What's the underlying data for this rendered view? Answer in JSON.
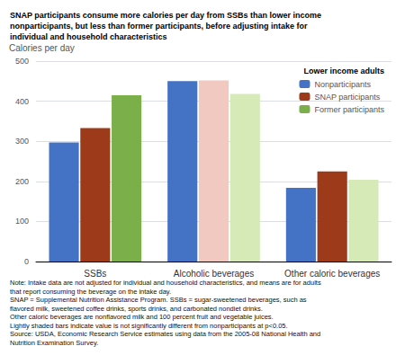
{
  "chart_data": {
    "type": "bar",
    "title": "SNAP participants consume more calories per day from SSBs than lower income\nnonparticipants, but less than former participants, before adjusting intake for\nindividual and household characteristics",
    "ylabel": "Calories per day",
    "categories": [
      "SSBs",
      "Alcoholic beverages",
      "Other caloric beverages"
    ],
    "series": [
      {
        "name": "Nonparticipants",
        "color": "#4472c4",
        "colors": [
          "#4472c4",
          "#4472c4",
          "#4472c4"
        ],
        "values": [
          297,
          450,
          184
        ]
      },
      {
        "name": "SNAP participants",
        "color": "#9c3a1a",
        "colors": [
          "#9c3a1a",
          "#f2c9c0",
          "#9c3a1a"
        ],
        "values": [
          333,
          452,
          225
        ]
      },
      {
        "name": "Former participants",
        "color": "#7aaf4a",
        "colors": [
          "#7aaf4a",
          "#d6eab8",
          "#d6eab8"
        ],
        "values": [
          415,
          418,
          204
        ]
      }
    ],
    "ylim": [
      0,
      500
    ],
    "yticks": [
      0,
      100,
      200,
      300,
      400,
      500
    ],
    "grid": true,
    "legend": "upper right",
    "legend_title": "Lower income adults",
    "notes": [
      "Note: Intake data are not adjusted for individual and household characteristics, and means are for adults",
      "that report consuming the beverage on the intake day.",
      "SNAP = Supplemental Nutrition Assistance Program. SSBs = sugar-sweetened beverages, such as",
      "flavored milk, sweetened coffee drinks, sports drinks, and carbonated nondiet drinks.",
      "Other caloric beverages are nonflavored milk and 100 percent fruit and vegetable juices.",
      "Lightly shaded bars indicate value is not significantly different from nonparticipants at p<0.05.",
      "Source: USDA, Economic Research Service estimates using data from the 2005-08 National Health and",
      "Nutrition Examination Survey."
    ]
  }
}
